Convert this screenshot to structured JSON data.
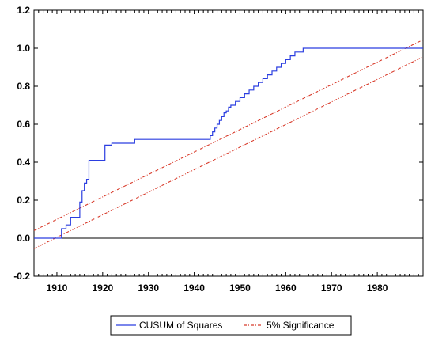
{
  "chart_data": {
    "type": "line",
    "title": "",
    "xlabel": "",
    "ylabel": "",
    "xlim": [
      1905,
      1990
    ],
    "ylim": [
      -0.2,
      1.2
    ],
    "x_ticks": [
      1910,
      1920,
      1930,
      1940,
      1950,
      1960,
      1970,
      1980
    ],
    "y_ticks": [
      1.2,
      1.0,
      0.8,
      0.6,
      0.4,
      0.2,
      0.0,
      -0.2
    ],
    "y_tick_labels": [
      "1.2",
      "1.0",
      "0.8",
      "0.6",
      "0.4",
      "0.2",
      "0.0",
      "-0.2"
    ],
    "zero_line": 0.0,
    "grid": false,
    "legend_position": "bottom-center",
    "series": [
      {
        "name": "CUSUM of Squares",
        "style": "step",
        "color": "#2b3ee0",
        "points": [
          [
            1905,
            0.0
          ],
          [
            1910,
            0.0
          ],
          [
            1911,
            0.05
          ],
          [
            1912,
            0.07
          ],
          [
            1913,
            0.11
          ],
          [
            1914.8,
            0.11
          ],
          [
            1915,
            0.19
          ],
          [
            1915.5,
            0.25
          ],
          [
            1916,
            0.29
          ],
          [
            1916.5,
            0.31
          ],
          [
            1917,
            0.41
          ],
          [
            1920,
            0.41
          ],
          [
            1920.5,
            0.49
          ],
          [
            1922,
            0.5
          ],
          [
            1927,
            0.52
          ],
          [
            1943,
            0.52
          ],
          [
            1943.5,
            0.54
          ],
          [
            1944,
            0.56
          ],
          [
            1944.5,
            0.58
          ],
          [
            1945,
            0.6
          ],
          [
            1945.5,
            0.62
          ],
          [
            1946,
            0.64
          ],
          [
            1946.5,
            0.66
          ],
          [
            1947,
            0.67
          ],
          [
            1947.5,
            0.69
          ],
          [
            1948,
            0.7
          ],
          [
            1949,
            0.72
          ],
          [
            1950,
            0.74
          ],
          [
            1951,
            0.76
          ],
          [
            1952,
            0.78
          ],
          [
            1953,
            0.8
          ],
          [
            1954,
            0.82
          ],
          [
            1955,
            0.84
          ],
          [
            1956,
            0.86
          ],
          [
            1957,
            0.88
          ],
          [
            1958,
            0.9
          ],
          [
            1959,
            0.92
          ],
          [
            1960,
            0.94
          ],
          [
            1961,
            0.96
          ],
          [
            1962,
            0.98
          ],
          [
            1963,
            0.98
          ],
          [
            1963.8,
            1.0
          ],
          [
            1990,
            1.0
          ]
        ]
      },
      {
        "name": "5% Significance",
        "style": "dashed",
        "color": "#d83a2a",
        "bands": [
          [
            [
              1905,
              0.04
            ],
            [
              1990,
              1.045
            ]
          ],
          [
            [
              1905,
              -0.055
            ],
            [
              1990,
              0.955
            ]
          ]
        ]
      }
    ]
  }
}
